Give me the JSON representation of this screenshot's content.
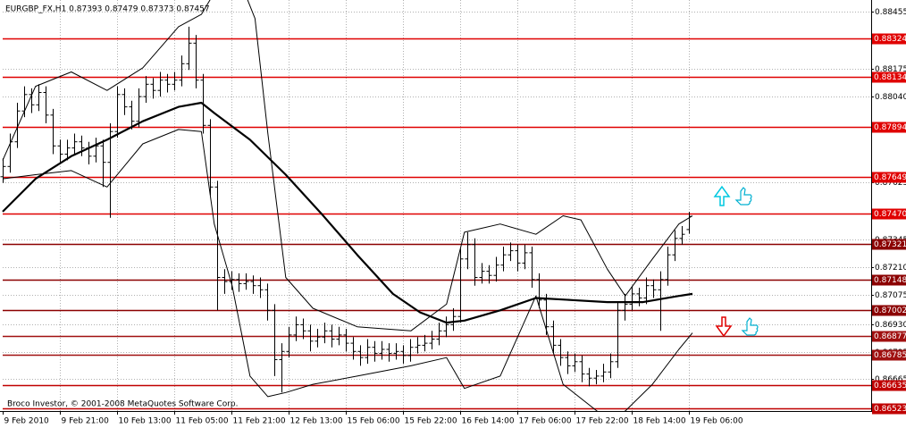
{
  "chart_data": {
    "type": "ohlc",
    "title": "EURGBP_FX,H1 0.87393 0.87479 0.87373 0.87457",
    "footnote": "Broco Investor, © 2001-2008 MetaQuotes Software Corp.",
    "color": "#000000",
    "open": [
      0.8765,
      0.877,
      0.8782,
      0.8797,
      0.8805,
      0.88,
      0.8806,
      0.8795,
      0.878,
      0.8776,
      0.8779,
      0.8782,
      0.8779,
      0.8775,
      0.878,
      0.8772,
      0.8787,
      0.8805,
      0.8799,
      0.8792,
      0.8804,
      0.881,
      0.8807,
      0.8812,
      0.881,
      0.8812,
      0.882,
      0.883,
      0.8812,
      0.879,
      0.876,
      0.8716,
      0.8714,
      0.8715,
      0.8713,
      0.8714,
      0.8712,
      0.871,
      0.87,
      0.8676,
      0.868,
      0.8688,
      0.8693,
      0.869,
      0.8685,
      0.8687,
      0.869,
      0.8686,
      0.8688,
      0.8684,
      0.868,
      0.8677,
      0.8682,
      0.8679,
      0.8681,
      0.8679,
      0.868,
      0.8678,
      0.8682,
      0.8683,
      0.8684,
      0.8686,
      0.869,
      0.8693,
      0.8697,
      0.8725,
      0.8732,
      0.8716,
      0.8719,
      0.8717,
      0.8722,
      0.8727,
      0.8729,
      0.8723,
      0.8728,
      0.8715,
      0.8705,
      0.8692,
      0.8683,
      0.8677,
      0.8673,
      0.8675,
      0.8669,
      0.8667,
      0.8668,
      0.867,
      0.8675,
      0.87,
      0.8703,
      0.8708,
      0.8706,
      0.8712,
      0.871,
      0.8715,
      0.8727,
      0.8735,
      0.87393
    ],
    "high": [
      0.8774,
      0.8786,
      0.8801,
      0.8809,
      0.8808,
      0.881,
      0.8809,
      0.8798,
      0.8783,
      0.8783,
      0.8786,
      0.8785,
      0.8782,
      0.8784,
      0.8783,
      0.8791,
      0.8809,
      0.8808,
      0.8802,
      0.8808,
      0.8814,
      0.8813,
      0.8816,
      0.8815,
      0.8816,
      0.8824,
      0.8838,
      0.8834,
      0.8815,
      0.8793,
      0.8763,
      0.872,
      0.8719,
      0.8718,
      0.8718,
      0.8717,
      0.8716,
      0.8713,
      0.8703,
      0.8684,
      0.8692,
      0.8697,
      0.8696,
      0.8693,
      0.8691,
      0.8694,
      0.8693,
      0.8692,
      0.8691,
      0.8687,
      0.8683,
      0.8686,
      0.8685,
      0.8685,
      0.8684,
      0.8684,
      0.8683,
      0.8686,
      0.8687,
      0.8688,
      0.869,
      0.8694,
      0.8697,
      0.8701,
      0.873,
      0.8738,
      0.8735,
      0.8723,
      0.8722,
      0.8726,
      0.8731,
      0.8733,
      0.8732,
      0.8732,
      0.8731,
      0.8718,
      0.8708,
      0.8695,
      0.8686,
      0.868,
      0.8679,
      0.8678,
      0.8672,
      0.8671,
      0.8674,
      0.8679,
      0.8704,
      0.8708,
      0.8712,
      0.8711,
      0.8716,
      0.8715,
      0.8719,
      0.8731,
      0.8739,
      0.8741,
      0.87479
    ],
    "low": [
      0.8762,
      0.8767,
      0.8779,
      0.8794,
      0.8796,
      0.8797,
      0.8791,
      0.8776,
      0.8772,
      0.8773,
      0.8776,
      0.8775,
      0.8771,
      0.8772,
      0.876,
      0.8745,
      0.8784,
      0.8795,
      0.8788,
      0.8789,
      0.8801,
      0.8803,
      0.8804,
      0.8806,
      0.8807,
      0.8809,
      0.8817,
      0.8808,
      0.8786,
      0.8756,
      0.87,
      0.8708,
      0.871,
      0.8709,
      0.871,
      0.8708,
      0.8706,
      0.8695,
      0.8668,
      0.866,
      0.8677,
      0.8685,
      0.8686,
      0.868,
      0.8682,
      0.8684,
      0.8682,
      0.8683,
      0.868,
      0.8676,
      0.8673,
      0.8674,
      0.8675,
      0.8676,
      0.8675,
      0.8676,
      0.8674,
      0.8675,
      0.8679,
      0.868,
      0.8681,
      0.8683,
      0.8687,
      0.869,
      0.8694,
      0.872,
      0.8712,
      0.8713,
      0.8713,
      0.8714,
      0.8719,
      0.8724,
      0.8719,
      0.872,
      0.8711,
      0.8701,
      0.8688,
      0.8679,
      0.8673,
      0.8669,
      0.867,
      0.8665,
      0.8663,
      0.8664,
      0.8665,
      0.8667,
      0.8672,
      0.8695,
      0.87,
      0.8702,
      0.8703,
      0.8706,
      0.869,
      0.8712,
      0.8724,
      0.8732,
      0.87373
    ],
    "close": [
      0.877,
      0.8782,
      0.8797,
      0.8805,
      0.88,
      0.8806,
      0.8795,
      0.878,
      0.8776,
      0.8779,
      0.8782,
      0.8779,
      0.8775,
      0.878,
      0.8772,
      0.8787,
      0.8805,
      0.8799,
      0.8792,
      0.8804,
      0.881,
      0.8807,
      0.8812,
      0.881,
      0.8812,
      0.882,
      0.883,
      0.8812,
      0.879,
      0.876,
      0.8716,
      0.8714,
      0.8715,
      0.8713,
      0.8714,
      0.8712,
      0.871,
      0.87,
      0.8676,
      0.868,
      0.8688,
      0.8693,
      0.869,
      0.8685,
      0.8687,
      0.869,
      0.8686,
      0.8688,
      0.8684,
      0.868,
      0.8677,
      0.8682,
      0.8679,
      0.8681,
      0.8679,
      0.868,
      0.8678,
      0.8682,
      0.8683,
      0.8684,
      0.8686,
      0.869,
      0.8693,
      0.8697,
      0.8725,
      0.8732,
      0.8716,
      0.8719,
      0.8717,
      0.8722,
      0.8727,
      0.8729,
      0.8723,
      0.8728,
      0.8715,
      0.8705,
      0.8692,
      0.8683,
      0.8677,
      0.8673,
      0.8675,
      0.8669,
      0.8667,
      0.8668,
      0.867,
      0.8675,
      0.87,
      0.8703,
      0.8708,
      0.8706,
      0.8712,
      0.871,
      0.8715,
      0.8727,
      0.8735,
      0.8737,
      0.87457
    ],
    "overlays": [
      {
        "color": "#000000",
        "x": [
          0,
          4.6,
          9.6,
          14.6,
          19.6,
          24.6,
          27.8,
          29.6,
          34.6,
          39.6,
          44.6,
          49.6,
          54.6,
          58.4,
          62.1,
          64.6,
          69.6,
          74.6,
          79.6,
          84.6,
          89.6,
          94.6,
          96.5
        ],
        "values": [
          0.8748,
          0.8764,
          0.8775,
          0.8783,
          0.8792,
          0.8799,
          0.8801,
          0.8796,
          0.8783,
          0.8766,
          0.8747,
          0.8727,
          0.8708,
          0.8699,
          0.8694,
          0.8695,
          0.87,
          0.8706,
          0.8705,
          0.8704,
          0.8704,
          0.8707,
          0.8708
        ]
      },
      {
        "color": "#000000",
        "x": [
          0,
          4.6,
          9.6,
          14.6,
          19.6,
          24.6,
          27.8,
          29,
          32.1,
          35.3,
          37.1,
          39.6,
          43.4,
          49.6,
          57.1,
          62.1,
          64.6,
          69.6,
          74.6,
          78.4,
          80.9,
          84.6,
          87.1,
          90.9,
          94.6,
          96.5
        ],
        "values": [
          0.8773,
          0.8809,
          0.8816,
          0.8807,
          0.8818,
          0.8838,
          0.8844,
          0.8851,
          0.887,
          0.8842,
          0.8786,
          0.8716,
          0.8701,
          0.8692,
          0.869,
          0.8703,
          0.8738,
          0.8742,
          0.8737,
          0.8746,
          0.8744,
          0.872,
          0.8707,
          0.8725,
          0.8742,
          0.8746
        ]
      },
      {
        "color": "#000000",
        "x": [
          0,
          4.6,
          9.6,
          14.6,
          19.6,
          24.6,
          27.8,
          29.6,
          32.1,
          34.6,
          37.1,
          39.6,
          43.4,
          49.6,
          57.1,
          62.1,
          64.6,
          69.6,
          74.6,
          78.4,
          84.6,
          87.1,
          90.9,
          94.6,
          96.5
        ],
        "values": [
          0.8764,
          0.8766,
          0.8768,
          0.876,
          0.8781,
          0.8788,
          0.8787,
          0.8742,
          0.8712,
          0.8668,
          0.8658,
          0.866,
          0.8664,
          0.8668,
          0.8673,
          0.8677,
          0.8662,
          0.8668,
          0.8707,
          0.8664,
          0.8647,
          0.8651,
          0.8664,
          0.8681,
          0.8689
        ]
      }
    ],
    "levels": [
      {
        "value": 0.88324,
        "color": "#e00000"
      },
      {
        "value": 0.88134,
        "color": "#e00000"
      },
      {
        "value": 0.87894,
        "color": "#e00000"
      },
      {
        "value": 0.87649,
        "color": "#e00000"
      },
      {
        "value": 0.8747,
        "label": "0.87470",
        "color": "#e00000"
      },
      {
        "value": 0.87321,
        "color": "#8b0000"
      },
      {
        "value": 0.87148,
        "color": "#8b0000"
      },
      {
        "value": 0.87002,
        "color": "#8b0000"
      },
      {
        "value": 0.86877,
        "color": "#a01010"
      },
      {
        "value": 0.86785,
        "color": "#a01010"
      },
      {
        "value": 0.86635,
        "color": "#c00000"
      },
      {
        "value": 0.86523,
        "color": "#c00000"
      }
    ],
    "xlim": [
      0,
      121.5
    ],
    "xticks": [
      {
        "value": 0,
        "label": "9 Feb 2010"
      },
      {
        "value": 8,
        "label": "9 Feb 21:00"
      },
      {
        "value": 16,
        "label": "10 Feb 13:00"
      },
      {
        "value": 24,
        "label": "11 Feb 05:00"
      },
      {
        "value": 32,
        "label": "11 Feb 21:00"
      },
      {
        "value": 40,
        "label": "12 Feb 13:00"
      },
      {
        "value": 48,
        "label": "15 Feb 06:00"
      },
      {
        "value": 56,
        "label": "15 Feb 22:00"
      },
      {
        "value": 64,
        "label": "16 Feb 14:00"
      },
      {
        "value": 72,
        "label": "17 Feb 06:00"
      },
      {
        "value": 80,
        "label": "17 Feb 22:00"
      },
      {
        "value": 88,
        "label": "18 Feb 14:00"
      },
      {
        "value": 96,
        "label": "19 Feb 06:00"
      }
    ],
    "ylim": [
      0.8651,
      0.8851
    ],
    "yticks": [
      0.88455,
      0.88175,
      {
        "value": 0.8804,
        "label": "0.88040"
      },
      0.87625,
      0.87345,
      {
        "value": 0.8721,
        "label": "0.87210"
      },
      0.87075,
      {
        "value": 0.8693,
        "label": "0.86930"
      },
      0.86795,
      0.86665
    ],
    "grid": true
  }
}
